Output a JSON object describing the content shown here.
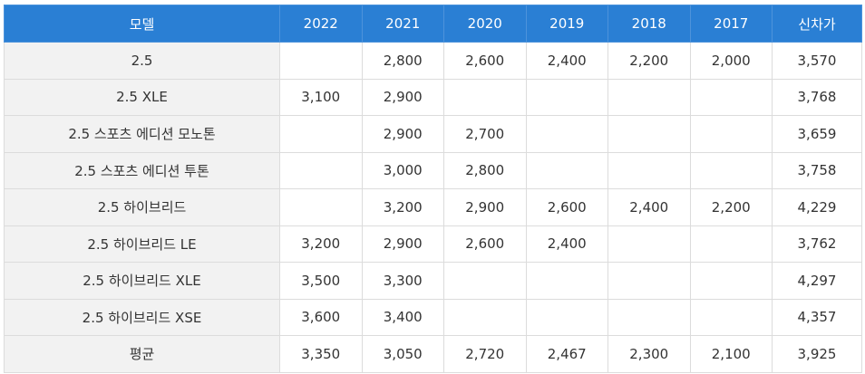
{
  "table": {
    "headers": [
      "모델",
      "2022",
      "2021",
      "2020",
      "2019",
      "2018",
      "2017",
      "신차가"
    ],
    "rows": [
      [
        "2.5",
        "",
        "2,800",
        "2,600",
        "2,400",
        "2,200",
        "2,000",
        "3,570"
      ],
      [
        "2.5 XLE",
        "3,100",
        "2,900",
        "",
        "",
        "",
        "",
        "3,768"
      ],
      [
        "2.5 스포츠 에디션 모노톤",
        "",
        "2,900",
        "2,700",
        "",
        "",
        "",
        "3,659"
      ],
      [
        "2.5 스포츠 에디션 투톤",
        "",
        "3,000",
        "2,800",
        "",
        "",
        "",
        "3,758"
      ],
      [
        "2.5 하이브리드",
        "",
        "3,200",
        "2,900",
        "2,600",
        "2,400",
        "2,200",
        "4,229"
      ],
      [
        "2.5 하이브리드 LE",
        "3,200",
        "2,900",
        "2,600",
        "2,400",
        "",
        "",
        "3,762"
      ],
      [
        "2.5 하이브리드 XLE",
        "3,500",
        "3,300",
        "",
        "",
        "",
        "",
        "4,297"
      ],
      [
        "2.5 하이브리드 XSE",
        "3,600",
        "3,400",
        "",
        "",
        "",
        "",
        "4,357"
      ],
      [
        "평균",
        "3,350",
        "3,050",
        "2,720",
        "2,467",
        "2,300",
        "2,100",
        "3,925"
      ]
    ]
  }
}
